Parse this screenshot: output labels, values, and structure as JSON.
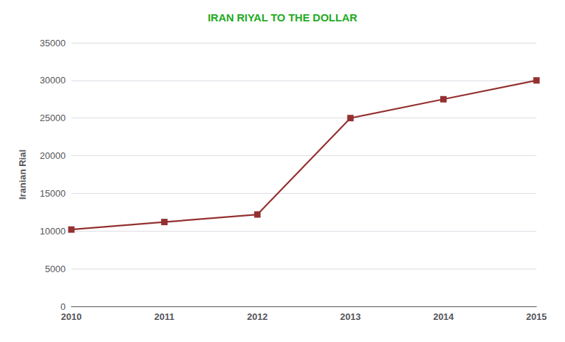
{
  "chart_data": {
    "type": "line",
    "title": "IRAN RIYAL TO THE DOLLAR",
    "ylabel": "Iranian Rial",
    "x": [
      2010,
      2011,
      2012,
      2013,
      2014,
      2015
    ],
    "values": [
      10200,
      11200,
      12200,
      25000,
      27500,
      30000
    ],
    "color": "#943030",
    "marker": "square",
    "xlim": [
      2010,
      2015
    ],
    "xticks": [
      2010,
      2011,
      2012,
      2013,
      2014,
      2015
    ],
    "ylim": [
      0,
      35000
    ],
    "yticks": [
      0,
      5000,
      10000,
      15000,
      20000,
      25000,
      30000,
      35000
    ],
    "grid": true
  }
}
